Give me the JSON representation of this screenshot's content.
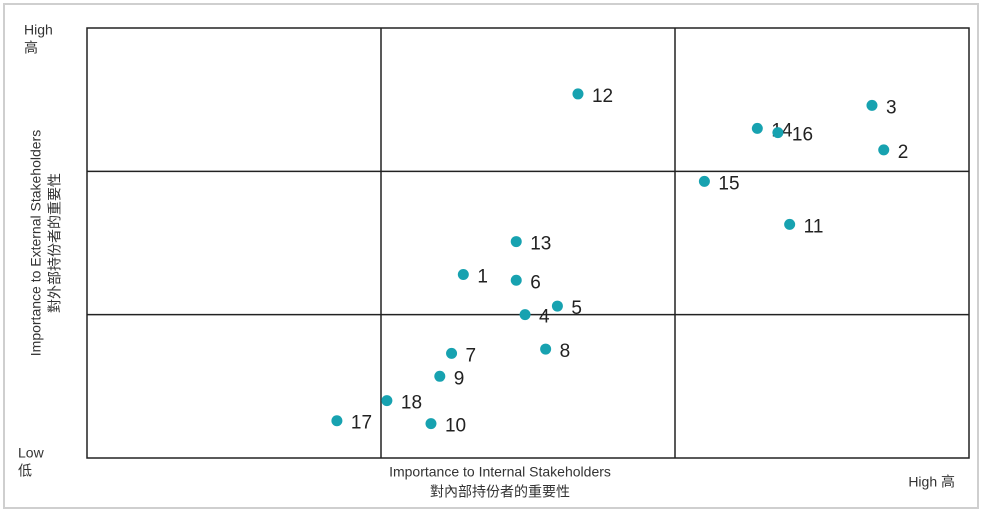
{
  "chart_data": {
    "type": "scatter",
    "y_high": [
      "High",
      "高"
    ],
    "y_low": [
      "Low",
      "低"
    ],
    "x_high": "High 高",
    "ylabel": [
      "Importance to External Stakeholders",
      "對外部持份者的重要性"
    ],
    "xlabel": [
      "Importance to Internal Stakeholders",
      "對內部持份者的重要性"
    ],
    "xlim": [
      0,
      3
    ],
    "ylim": [
      0,
      3
    ],
    "xgrid": [
      1,
      2
    ],
    "ygrid": [
      1,
      2
    ],
    "color": "#17a2b0",
    "labels": [
      "12",
      "3",
      "14",
      "16",
      "2",
      "15",
      "11",
      "13",
      "1",
      "6",
      "5",
      "4",
      "8",
      "7",
      "9",
      "18",
      "17",
      "10"
    ],
    "x": [
      1.67,
      2.67,
      2.28,
      2.35,
      2.71,
      2.1,
      2.39,
      1.46,
      1.28,
      1.46,
      1.6,
      1.49,
      1.56,
      1.24,
      1.2,
      1.02,
      0.85,
      1.17
    ],
    "y": [
      2.54,
      2.46,
      2.3,
      2.27,
      2.15,
      1.93,
      1.63,
      1.51,
      1.28,
      1.24,
      1.06,
      1.0,
      0.76,
      0.73,
      0.57,
      0.4,
      0.26,
      0.24
    ]
  }
}
